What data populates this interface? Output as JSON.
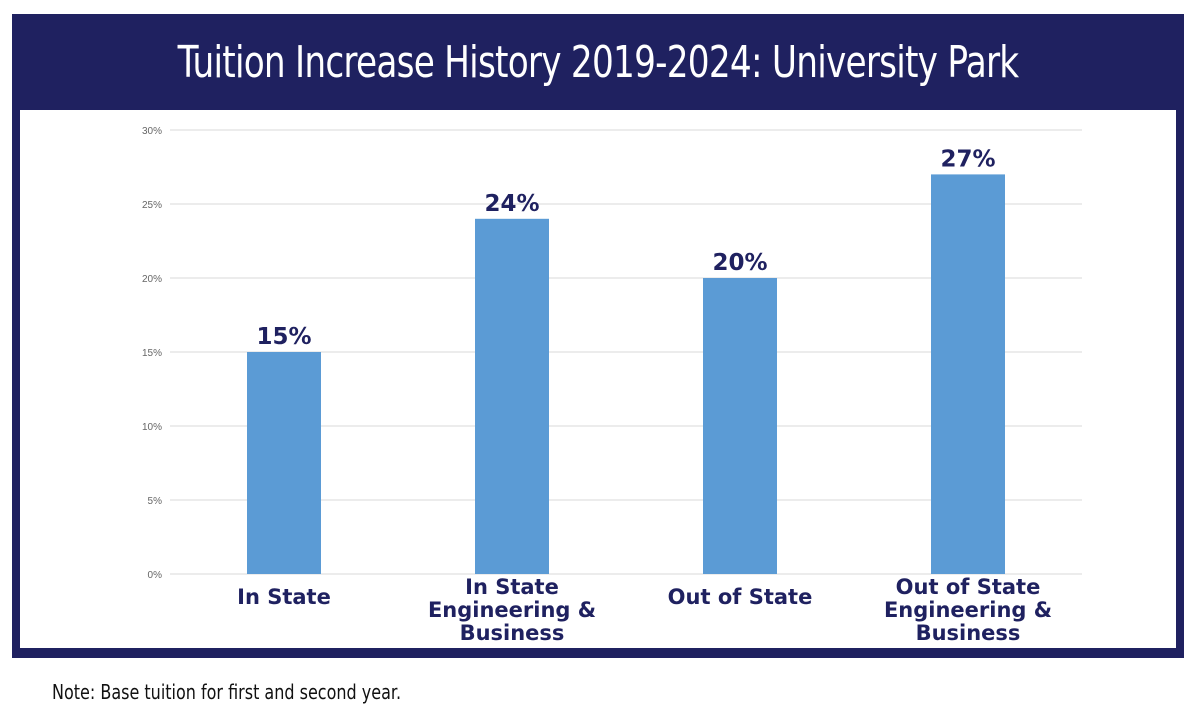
{
  "header": {
    "title": "Tuition Increase History 2019-2024: University Park"
  },
  "note": "Note: Base tuition for first and second year.",
  "colors": {
    "frame": "#1f2160",
    "bar": "#5b9bd5",
    "label": "#1f2160",
    "grid": "#d9d9d9"
  },
  "chart_data": {
    "type": "bar",
    "title": "Tuition Increase History 2019-2024: University Park",
    "xlabel": "",
    "ylabel": "",
    "categories": [
      [
        "In State"
      ],
      [
        "In State",
        "Engineering &",
        "Business"
      ],
      [
        "Out of State"
      ],
      [
        "Out of State",
        "Engineering &",
        "Business"
      ]
    ],
    "values": [
      15,
      24,
      20,
      27
    ],
    "data_labels": [
      "15%",
      "24%",
      "20%",
      "27%"
    ],
    "ylim": [
      0,
      30
    ],
    "yticks": [
      "0%",
      "5%",
      "10%",
      "15%",
      "20%",
      "25%",
      "30%"
    ],
    "grid": true,
    "legend": "none"
  }
}
